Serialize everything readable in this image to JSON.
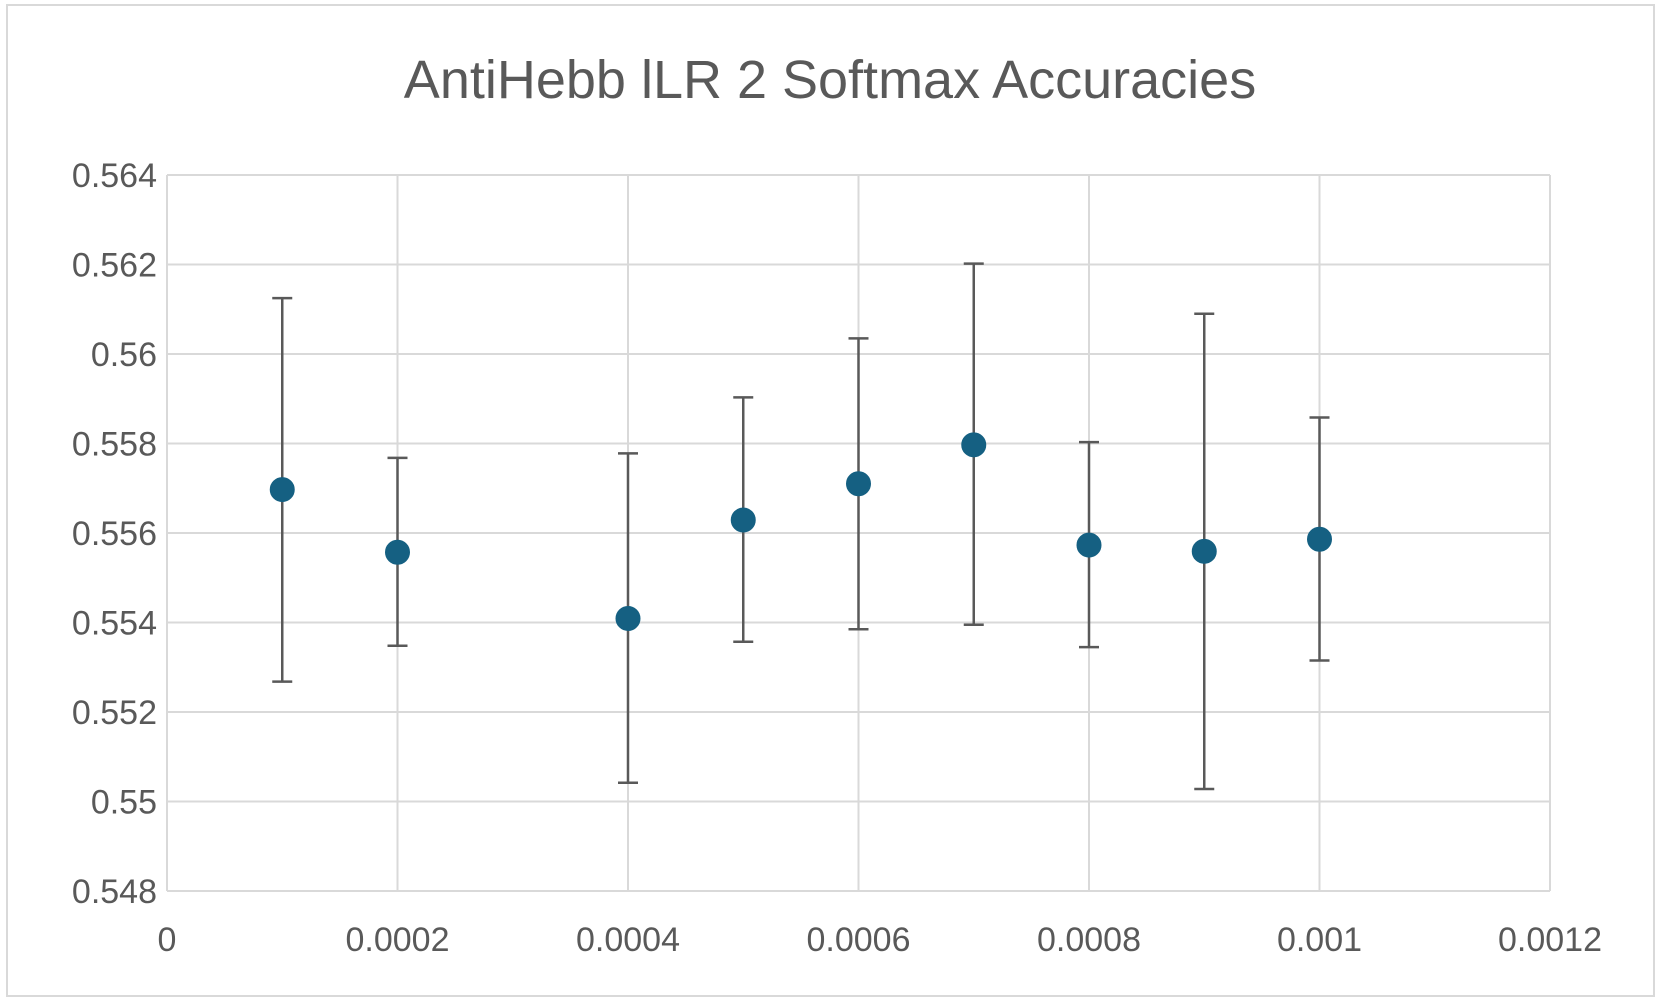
{
  "chart_data": {
    "type": "scatter",
    "title": "AntiHebb lLR 2 Softmax Accuracies",
    "xlabel": "",
    "ylabel": "",
    "xlim": [
      0,
      0.0012
    ],
    "ylim": [
      0.548,
      0.564
    ],
    "x_ticks": [
      0,
      0.0002,
      0.0004,
      0.0006,
      0.0008,
      0.001,
      0.0012
    ],
    "x_tick_labels": [
      "0",
      "0.0002",
      "0.0004",
      "0.0006",
      "0.0008",
      "0.001",
      "0.0012"
    ],
    "y_ticks": [
      0.548,
      0.55,
      0.552,
      0.554,
      0.556,
      0.558,
      0.56,
      0.562,
      0.564
    ],
    "y_tick_labels": [
      "0.548",
      "0.55",
      "0.552",
      "0.554",
      "0.556",
      "0.558",
      "0.56",
      "0.562",
      "0.564"
    ],
    "grid": true,
    "legend": "none",
    "marker_color": "#156082",
    "error_bar_color": "#595959",
    "points": [
      {
        "x": 0.0001,
        "y": 0.55697,
        "err_low": 0.55268,
        "err_high": 0.56125
      },
      {
        "x": 0.0002,
        "y": 0.55557,
        "err_low": 0.55348,
        "err_high": 0.55768
      },
      {
        "x": 0.0004,
        "y": 0.55409,
        "err_low": 0.55042,
        "err_high": 0.55778
      },
      {
        "x": 0.0005,
        "y": 0.55629,
        "err_low": 0.55357,
        "err_high": 0.55903
      },
      {
        "x": 0.0006,
        "y": 0.5571,
        "err_low": 0.55385,
        "err_high": 0.56035
      },
      {
        "x": 0.0007,
        "y": 0.55797,
        "err_low": 0.55395,
        "err_high": 0.56202
      },
      {
        "x": 0.0008,
        "y": 0.55573,
        "err_low": 0.55345,
        "err_high": 0.55803
      },
      {
        "x": 0.0009,
        "y": 0.55559,
        "err_low": 0.55028,
        "err_high": 0.5609
      },
      {
        "x": 0.001,
        "y": 0.55586,
        "err_low": 0.55315,
        "err_high": 0.55858
      }
    ]
  }
}
